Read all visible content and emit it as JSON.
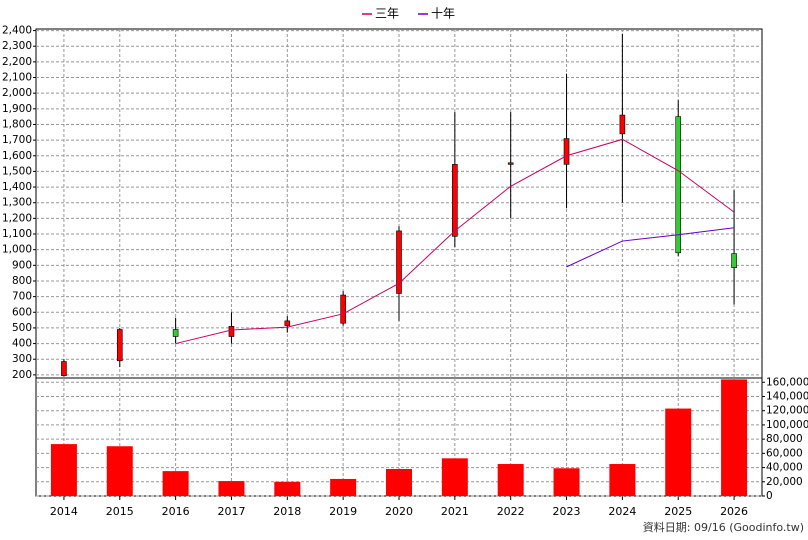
{
  "chart_data": [
    {
      "type": "candlestick",
      "open": [
        195,
        290,
        490,
        445,
        515,
        530,
        720,
        1085,
        1545,
        1545,
        1740,
        1850,
        975
      ],
      "high": [
        300,
        500,
        565,
        600,
        575,
        735,
        1150,
        1880,
        1880,
        2125,
        2380,
        1955,
        1380
      ],
      "low": [
        190,
        250,
        400,
        400,
        470,
        515,
        545,
        1015,
        1200,
        1265,
        1300,
        960,
        650
      ],
      "close": [
        285,
        490,
        445,
        510,
        545,
        710,
        1120,
        1545,
        1555,
        1710,
        1860,
        980,
        885
      ],
      "up_color": "#ff0000",
      "down_color": "#33cc33",
      "series": [
        {
          "name": "三年",
          "color": "#cc0066",
          "values": [
            null,
            null,
            400,
            487,
            505,
            590,
            785,
            1120,
            1405,
            1600,
            1705,
            1505,
            1240
          ]
        },
        {
          "name": "十年",
          "color": "#6600cc",
          "values": [
            null,
            null,
            null,
            null,
            null,
            null,
            null,
            null,
            null,
            890,
            1055,
            1095,
            1140
          ]
        }
      ],
      "ylim": [
        180,
        2410
      ],
      "yticks": [
        {
          "value": 2400,
          "label": "2,400"
        },
        {
          "value": 2300,
          "label": "2,300"
        },
        {
          "value": 2200,
          "label": "2,200"
        },
        {
          "value": 2100,
          "label": "2,100"
        },
        {
          "value": 2000,
          "label": "2,000"
        },
        {
          "value": 1900,
          "label": "1,900"
        },
        {
          "value": 1800,
          "label": "1,800"
        },
        {
          "value": 1700,
          "label": "1,700"
        },
        {
          "value": 1600,
          "label": "1,600"
        },
        {
          "value": 1500,
          "label": "1,500"
        },
        {
          "value": 1400,
          "label": "1,400"
        },
        {
          "value": 1300,
          "label": "1,300"
        },
        {
          "value": 1200,
          "label": "1,200"
        },
        {
          "value": 1100,
          "label": "1,100"
        },
        {
          "value": 1000,
          "label": "1,000"
        },
        900,
        800,
        700,
        600,
        500,
        400,
        300,
        200
      ],
      "grid": true
    },
    {
      "type": "bar",
      "categories": [
        "2014",
        "2015",
        "2016",
        "2017",
        "2018",
        "2019",
        "2020",
        "2021",
        "2022",
        "2023",
        "2024",
        "2025",
        "2026"
      ],
      "values": [
        73000,
        70000,
        35000,
        21000,
        20000,
        24000,
        38000,
        53000,
        45000,
        39000,
        45000,
        123000,
        164000
      ],
      "color": "#ff0000",
      "ylim": [
        0,
        166000
      ],
      "yticks": [
        0,
        {
          "value": 20000,
          "label": "20,000"
        },
        {
          "value": 40000,
          "label": "40,000"
        },
        {
          "value": 60000,
          "label": "60,000"
        },
        {
          "value": 80000,
          "label": "80,000"
        },
        {
          "value": 100000,
          "label": "100,000"
        },
        {
          "value": 120000,
          "label": "120,000"
        },
        {
          "value": 140000,
          "label": "140,000"
        },
        {
          "value": 160000,
          "label": "160,000"
        }
      ],
      "grid": true,
      "source": "資料日期: 09/16  (Goodinfo.tw)"
    }
  ]
}
